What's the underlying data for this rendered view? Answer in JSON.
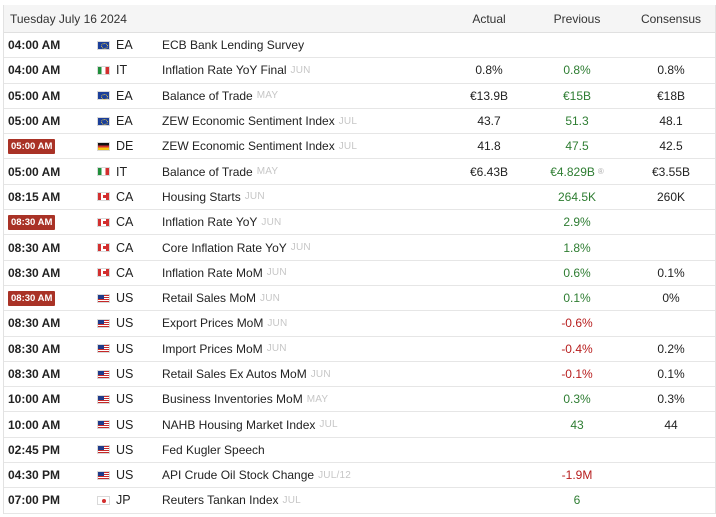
{
  "header": {
    "date": "Tuesday July 16 2024",
    "actual_label": "Actual",
    "previous_label": "Previous",
    "consensus_label": "Consensus"
  },
  "colors": {
    "highlight_badge": "#a93226",
    "positive": "#2e7d32",
    "negative": "#b71c1c"
  },
  "rows": [
    {
      "time": "04:00 AM",
      "highlight": false,
      "flag": "eu-flag-icon",
      "country": "EA",
      "event": "ECB Bank Lending Survey",
      "period": "",
      "actual": "",
      "previous": "",
      "previous_tone": "",
      "revised": false,
      "consensus": ""
    },
    {
      "time": "04:00 AM",
      "highlight": false,
      "flag": "it-flag-icon",
      "country": "IT",
      "event": "Inflation Rate YoY Final",
      "period": "JUN",
      "actual": "0.8%",
      "previous": "0.8%",
      "previous_tone": "green",
      "revised": false,
      "consensus": "0.8%"
    },
    {
      "time": "05:00 AM",
      "highlight": false,
      "flag": "eu-flag-icon",
      "country": "EA",
      "event": "Balance of Trade",
      "period": "MAY",
      "actual": "€13.9B",
      "previous": "€15B",
      "previous_tone": "green",
      "revised": false,
      "consensus": "€18B"
    },
    {
      "time": "05:00 AM",
      "highlight": false,
      "flag": "eu-flag-icon",
      "country": "EA",
      "event": "ZEW Economic Sentiment Index",
      "period": "JUL",
      "actual": "43.7",
      "previous": "51.3",
      "previous_tone": "green",
      "revised": false,
      "consensus": "48.1"
    },
    {
      "time": "05:00 AM",
      "highlight": true,
      "flag": "de-flag-icon",
      "country": "DE",
      "event": "ZEW Economic Sentiment Index",
      "period": "JUL",
      "actual": "41.8",
      "previous": "47.5",
      "previous_tone": "green",
      "revised": false,
      "consensus": "42.5"
    },
    {
      "time": "05:00 AM",
      "highlight": false,
      "flag": "it-flag-icon",
      "country": "IT",
      "event": "Balance of Trade",
      "period": "MAY",
      "actual": "€6.43B",
      "previous": "€4.829B",
      "previous_tone": "green",
      "revised": true,
      "consensus": "€3.55B"
    },
    {
      "time": "08:15 AM",
      "highlight": false,
      "flag": "ca-flag-icon",
      "country": "CA",
      "event": "Housing Starts",
      "period": "JUN",
      "actual": "",
      "previous": "264.5K",
      "previous_tone": "green",
      "revised": false,
      "consensus": "260K"
    },
    {
      "time": "08:30 AM",
      "highlight": true,
      "flag": "ca-flag-icon",
      "country": "CA",
      "event": "Inflation Rate YoY",
      "period": "JUN",
      "actual": "",
      "previous": "2.9%",
      "previous_tone": "green",
      "revised": false,
      "consensus": ""
    },
    {
      "time": "08:30 AM",
      "highlight": false,
      "flag": "ca-flag-icon",
      "country": "CA",
      "event": "Core Inflation Rate YoY",
      "period": "JUN",
      "actual": "",
      "previous": "1.8%",
      "previous_tone": "green",
      "revised": false,
      "consensus": ""
    },
    {
      "time": "08:30 AM",
      "highlight": false,
      "flag": "ca-flag-icon",
      "country": "CA",
      "event": "Inflation Rate MoM",
      "period": "JUN",
      "actual": "",
      "previous": "0.6%",
      "previous_tone": "green",
      "revised": false,
      "consensus": "0.1%"
    },
    {
      "time": "08:30 AM",
      "highlight": true,
      "flag": "us-flag-icon",
      "country": "US",
      "event": "Retail Sales MoM",
      "period": "JUN",
      "actual": "",
      "previous": "0.1%",
      "previous_tone": "green",
      "revised": false,
      "consensus": "0%"
    },
    {
      "time": "08:30 AM",
      "highlight": false,
      "flag": "us-flag-icon",
      "country": "US",
      "event": "Export Prices MoM",
      "period": "JUN",
      "actual": "",
      "previous": "-0.6%",
      "previous_tone": "red",
      "revised": false,
      "consensus": ""
    },
    {
      "time": "08:30 AM",
      "highlight": false,
      "flag": "us-flag-icon",
      "country": "US",
      "event": "Import Prices MoM",
      "period": "JUN",
      "actual": "",
      "previous": "-0.4%",
      "previous_tone": "red",
      "revised": false,
      "consensus": "0.2%"
    },
    {
      "time": "08:30 AM",
      "highlight": false,
      "flag": "us-flag-icon",
      "country": "US",
      "event": "Retail Sales Ex Autos MoM",
      "period": "JUN",
      "actual": "",
      "previous": "-0.1%",
      "previous_tone": "red",
      "revised": false,
      "consensus": "0.1%"
    },
    {
      "time": "10:00 AM",
      "highlight": false,
      "flag": "us-flag-icon",
      "country": "US",
      "event": "Business Inventories MoM",
      "period": "MAY",
      "actual": "",
      "previous": "0.3%",
      "previous_tone": "green",
      "revised": false,
      "consensus": "0.3%"
    },
    {
      "time": "10:00 AM",
      "highlight": false,
      "flag": "us-flag-icon",
      "country": "US",
      "event": "NAHB Housing Market Index",
      "period": "JUL",
      "actual": "",
      "previous": "43",
      "previous_tone": "green",
      "revised": false,
      "consensus": "44"
    },
    {
      "time": "02:45 PM",
      "highlight": false,
      "flag": "us-flag-icon",
      "country": "US",
      "event": "Fed Kugler Speech",
      "period": "",
      "actual": "",
      "previous": "",
      "previous_tone": "",
      "revised": false,
      "consensus": ""
    },
    {
      "time": "04:30 PM",
      "highlight": false,
      "flag": "us-flag-icon",
      "country": "US",
      "event": "API Crude Oil Stock Change",
      "period": "JUL/12",
      "actual": "",
      "previous": "-1.9M",
      "previous_tone": "red",
      "revised": false,
      "consensus": ""
    },
    {
      "time": "07:00 PM",
      "highlight": false,
      "flag": "jp-flag-icon",
      "country": "JP",
      "event": "Reuters Tankan Index",
      "period": "JUL",
      "actual": "",
      "previous": "6",
      "previous_tone": "green",
      "revised": false,
      "consensus": ""
    }
  ]
}
